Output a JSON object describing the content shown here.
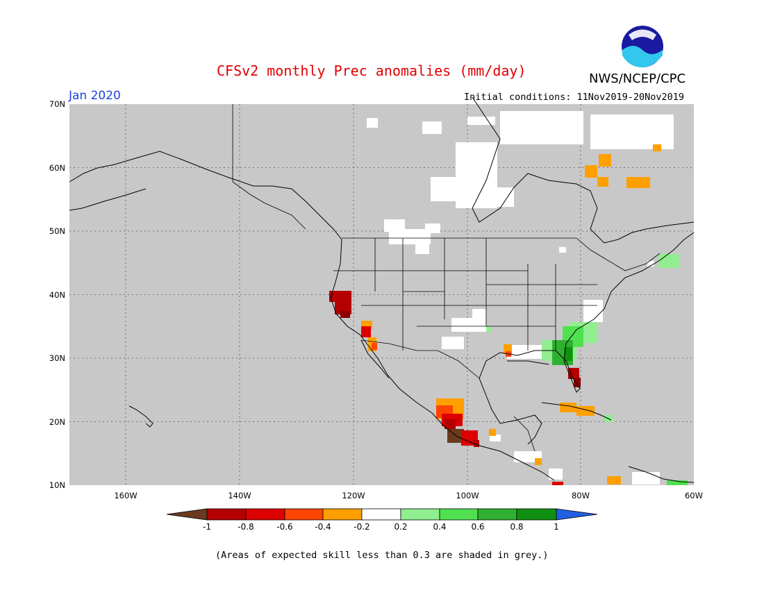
{
  "title": "CFSv2 monthly Prec anomalies (mm/day)",
  "agency": "NWS/NCEP/CPC",
  "month": "Jan 2020",
  "initial_conditions": "Initial conditions: 11Nov2019-20Nov2019",
  "skill_note": "(Areas of expected skill less than 0.3 are shaded in grey.)",
  "logo_text": "NOAA",
  "map": {
    "lat_labels": [
      "70N",
      "60N",
      "50N",
      "40N",
      "30N",
      "20N",
      "10N"
    ],
    "lon_labels": [
      "160W",
      "140W",
      "120W",
      "100W",
      "80W",
      "60W"
    ],
    "extent": {
      "lon": [
        -172,
        -60
      ],
      "lat": [
        10,
        70
      ]
    },
    "grid": "dotted",
    "grey_background": "#c8c8c8"
  },
  "colorbar": {
    "labels": [
      "-1",
      "-0.8",
      "-0.6",
      "-0.4",
      "-0.2",
      "0.2",
      "0.4",
      "0.6",
      "0.8",
      "1"
    ],
    "colors": [
      "#6b3a1e",
      "#b40000",
      "#dc0000",
      "#ff4500",
      "#ffa000",
      "#ffffff",
      "#90ee90",
      "#50e050",
      "#30b030",
      "#109010",
      "#2060e0"
    ]
  },
  "colors": {
    "title": "#e00000",
    "month": "#1a40e0",
    "grey": "#c8c8c8"
  }
}
